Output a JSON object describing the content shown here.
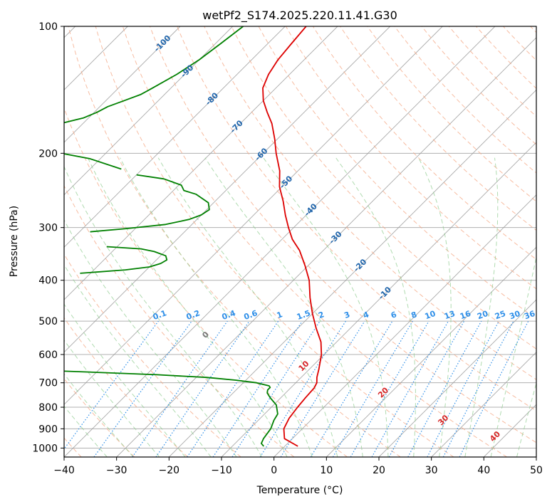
{
  "chart_data": {
    "type": "line",
    "title": "wetPf2_S174.2025.220.11.41.G30",
    "xlabel": "Temperature (°C)",
    "ylabel": "Pressure (hPa)",
    "xlim": [
      -40,
      50
    ],
    "ylim": [
      1050,
      100
    ],
    "y_scale": "log",
    "grid": true,
    "x_ticks": [
      -40,
      -30,
      -20,
      -10,
      0,
      10,
      20,
      30,
      40,
      50
    ],
    "x_tick_labels": [
      "−40",
      "−30",
      "−20",
      "−10",
      "0",
      "10",
      "20",
      "30",
      "40",
      "50"
    ],
    "y_ticks": [
      1000,
      900,
      800,
      700,
      600,
      500,
      400,
      300,
      200,
      100
    ],
    "y_tick_labels": [
      "1000",
      "900",
      "800",
      "700",
      "600",
      "500",
      "400",
      "300",
      "200",
      "100"
    ],
    "skew_degrees": 45,
    "series": [
      {
        "role": "temperature",
        "color": "#dd0000",
        "points": [
          [
            990,
            2.5
          ],
          [
            950,
            -1.5
          ],
          [
            900,
            -3.5
          ],
          [
            850,
            -4.5
          ],
          [
            800,
            -5.0
          ],
          [
            760,
            -5.3
          ],
          [
            720,
            -5.5
          ],
          [
            700,
            -6.0
          ],
          [
            680,
            -7.0
          ],
          [
            650,
            -8.2
          ],
          [
            600,
            -10.5
          ],
          [
            560,
            -13.0
          ],
          [
            520,
            -16.5
          ],
          [
            480,
            -20.0
          ],
          [
            440,
            -23.5
          ],
          [
            400,
            -27.0
          ],
          [
            370,
            -30.5
          ],
          [
            340,
            -34.5
          ],
          [
            320,
            -38.0
          ],
          [
            300,
            -41.0
          ],
          [
            280,
            -44.0
          ],
          [
            260,
            -47.0
          ],
          [
            240,
            -50.5
          ],
          [
            220,
            -53.5
          ],
          [
            200,
            -57.5
          ],
          [
            185,
            -60.5
          ],
          [
            170,
            -64.0
          ],
          [
            160,
            -67.0
          ],
          [
            150,
            -70.0
          ],
          [
            140,
            -72.5
          ],
          [
            130,
            -74.0
          ],
          [
            120,
            -75.0
          ],
          [
            110,
            -75.5
          ],
          [
            100,
            -76.0
          ]
        ]
      },
      {
        "role": "dewpoint",
        "color": "#008000",
        "points": [
          [
            990,
            -4.0
          ],
          [
            975,
            -5.0
          ],
          [
            950,
            -5.5
          ],
          [
            900,
            -6.0
          ],
          [
            860,
            -7.0
          ],
          [
            830,
            -7.5
          ],
          [
            790,
            -9.5
          ],
          [
            760,
            -12.0
          ],
          [
            740,
            -13.5
          ],
          [
            728,
            -14.0
          ],
          [
            718,
            -14.0
          ],
          [
            712,
            -14.5
          ],
          [
            700,
            -17.5
          ],
          [
            690,
            -22.0
          ],
          [
            680,
            -28.0
          ],
          [
            670,
            -38.0
          ],
          [
            660,
            -52.0
          ],
          [
            645,
            -75.0
          ],
          [
            640,
            -90.0
          ]
        ]
      },
      {
        "role": "dewpoint",
        "color": "#008000",
        "points": [
          [
            385,
            -72
          ],
          [
            378,
            -64
          ],
          [
            372,
            -60
          ],
          [
            365,
            -58.5
          ],
          [
            358,
            -58
          ],
          [
            350,
            -59
          ],
          [
            342,
            -62
          ],
          [
            337,
            -65
          ],
          [
            333,
            -72
          ]
        ]
      },
      {
        "role": "dewpoint",
        "color": "#008000",
        "points": [
          [
            307,
            -78
          ],
          [
            302,
            -72
          ],
          [
            295,
            -65
          ],
          [
            287,
            -61.5
          ],
          [
            280,
            -60
          ],
          [
            272,
            -59.5
          ],
          [
            262,
            -61
          ],
          [
            250,
            -65
          ],
          [
            245,
            -68
          ],
          [
            238,
            -69.5
          ],
          [
            230,
            -74
          ],
          [
            225,
            -80
          ]
        ]
      },
      {
        "role": "dewpoint",
        "color": "#008000",
        "points": [
          [
            218,
            -84
          ],
          [
            206,
            -92
          ],
          [
            195,
            -104
          ],
          [
            190,
            -112
          ],
          [
            186,
            -112.5
          ],
          [
            182,
            -113
          ],
          [
            176,
            -108
          ],
          [
            165,
            -101
          ],
          [
            160,
            -99.5
          ],
          [
            155,
            -98.5
          ],
          [
            150,
            -96.5
          ],
          [
            145,
            -94.5
          ],
          [
            140,
            -93.5
          ],
          [
            130,
            -91.5
          ],
          [
            120,
            -90
          ],
          [
            110,
            -89
          ],
          [
            100,
            -88
          ]
        ]
      }
    ],
    "isotherm_labels": [
      "-100",
      "-90",
      "-80",
      "-70",
      "-60",
      "-50",
      "-40",
      "-30",
      "-20",
      "-10"
    ],
    "isotherm_label_values": [
      -100,
      -90,
      -80,
      -70,
      -60,
      -50,
      -40,
      -30,
      -20,
      -10
    ],
    "mixing_ratio_labels": [
      "0.1",
      "0.2",
      "0.4",
      "0.6",
      "1",
      "1.5",
      "2",
      "3",
      "4",
      "6",
      "8",
      "10",
      "13",
      "16",
      "20",
      "25",
      "30",
      "36"
    ],
    "mixing_ratio_values": [
      0.1,
      0.2,
      0.4,
      0.6,
      1,
      1.5,
      2,
      3,
      4,
      6,
      8,
      10,
      13,
      16,
      20,
      25,
      30,
      36
    ],
    "moist_adiabat_labels": [
      "0",
      "10",
      "20",
      "30",
      "40"
    ],
    "moist_adiabat_values": [
      0,
      10,
      20,
      30,
      40
    ],
    "colors": {
      "temperature": "#dd0000",
      "dewpoint": "#008000",
      "isotherm": "#9a9a9a",
      "isobar": "#b0b0b0",
      "dry_adiabat": "#f4a582",
      "moist_adiabat": "#8fcc8f",
      "mixing_ratio": "#2f8fe8",
      "isotherm_label": "#2166ac",
      "moist_label_zero": "#777777",
      "moist_label": "#d62728"
    }
  }
}
